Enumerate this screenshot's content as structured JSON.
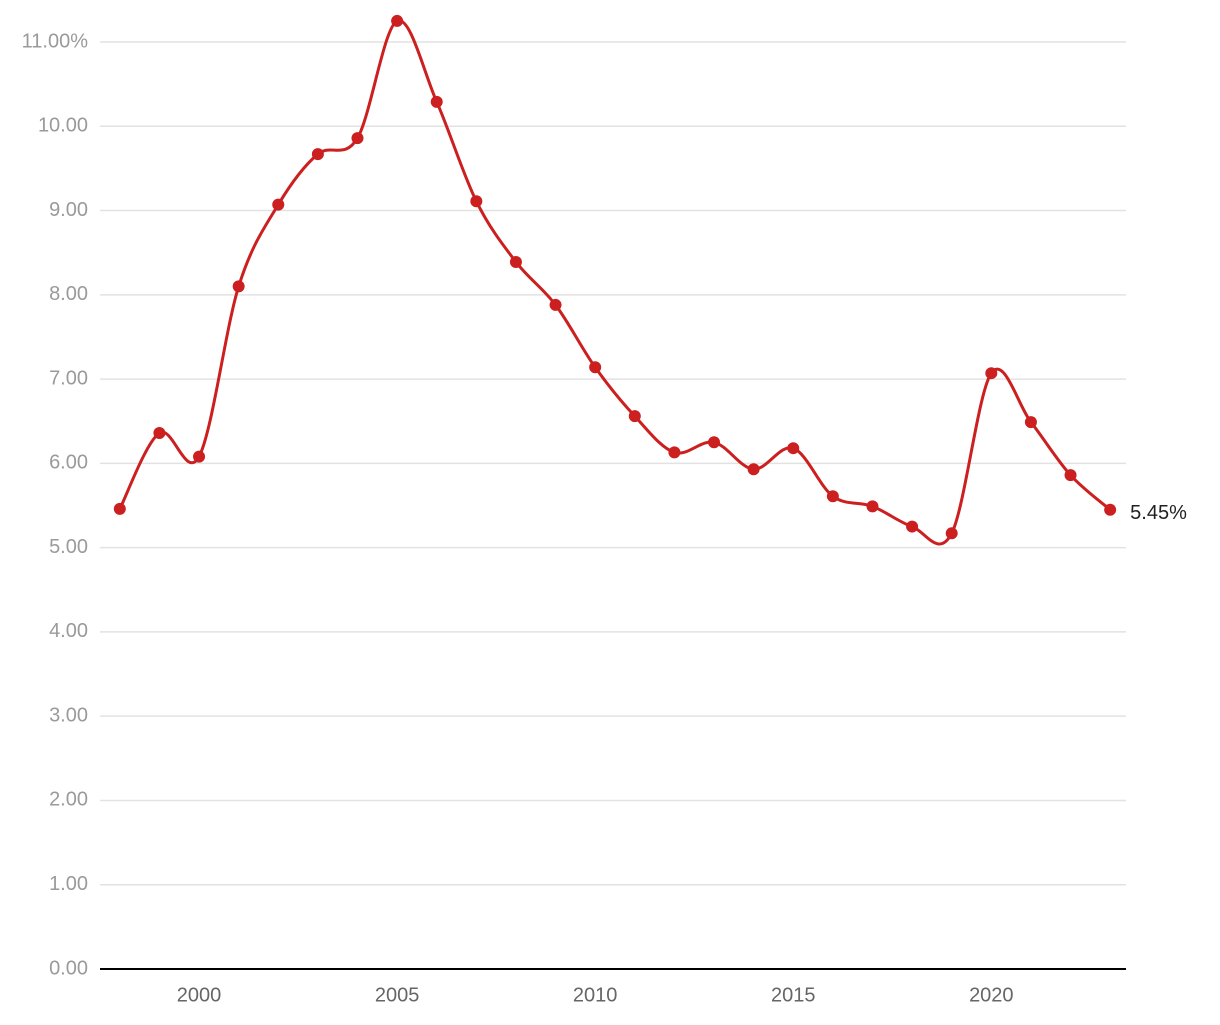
{
  "chart_data": {
    "type": "line",
    "x": [
      1998,
      1999,
      2000,
      2001,
      2002,
      2003,
      2004,
      2005,
      2006,
      2007,
      2008,
      2009,
      2010,
      2011,
      2012,
      2013,
      2014,
      2015,
      2016,
      2017,
      2018,
      2019,
      2020,
      2021,
      2022,
      2023
    ],
    "series": [
      {
        "color": "#cc1f1f",
        "values": [
          5.46,
          6.36,
          6.08,
          8.1,
          9.07,
          9.67,
          9.86,
          11.25,
          10.29,
          9.11,
          8.39,
          7.88,
          7.14,
          6.56,
          6.13,
          6.25,
          5.93,
          6.18,
          5.61,
          5.49,
          5.25,
          5.17,
          7.07,
          6.49,
          5.86,
          5.45
        ],
        "value_labels": [
          null,
          null,
          null,
          null,
          null,
          null,
          null,
          null,
          null,
          null,
          null,
          null,
          null,
          null,
          null,
          null,
          null,
          null,
          null,
          null,
          null,
          null,
          null,
          null,
          null,
          "5.45%"
        ]
      }
    ],
    "xlim": [
      1997.5,
      2023.4
    ],
    "xticks": [
      2000,
      2005,
      2010,
      2015,
      2020
    ],
    "ylim": [
      0,
      11
    ],
    "yticks": [
      {
        "value": 0,
        "label": "0.00"
      },
      {
        "value": 1,
        "label": "1.00"
      },
      {
        "value": 2,
        "label": "2.00"
      },
      {
        "value": 3,
        "label": "3.00"
      },
      {
        "value": 4,
        "label": "4.00"
      },
      {
        "value": 5,
        "label": "5.00"
      },
      {
        "value": 6,
        "label": "6.00"
      },
      {
        "value": 7,
        "label": "7.00"
      },
      {
        "value": 8,
        "label": "8.00"
      },
      {
        "value": 9,
        "label": "9.00"
      },
      {
        "value": 10,
        "label": "10.00"
      },
      {
        "value": 11,
        "label": "11.00%"
      }
    ],
    "grid": true
  }
}
